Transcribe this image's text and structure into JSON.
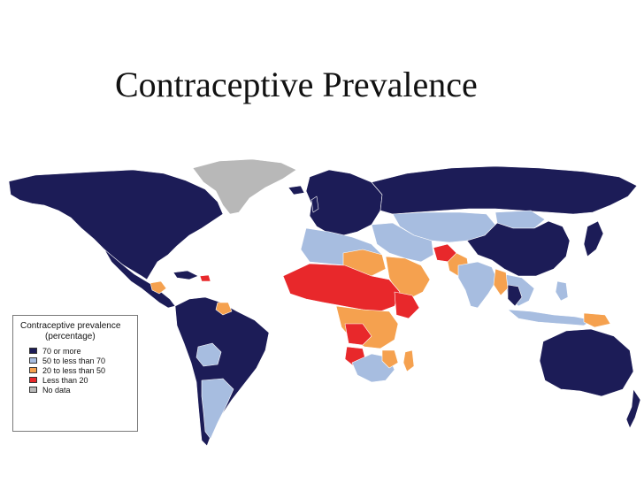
{
  "title": "Contraceptive Prevalence",
  "legend": {
    "title": "Contraceptive prevalence",
    "subtitle": "(percentage)",
    "items": [
      {
        "label": "70 or more",
        "color": "#1c1c57"
      },
      {
        "label": "50 to less than 70",
        "color": "#a7bde0"
      },
      {
        "label": "20 to less than 50",
        "color": "#f5a14f"
      },
      {
        "label": "Less than 20",
        "color": "#e8282b"
      },
      {
        "label": "No data",
        "color": "#b8b8b8"
      }
    ]
  }
}
